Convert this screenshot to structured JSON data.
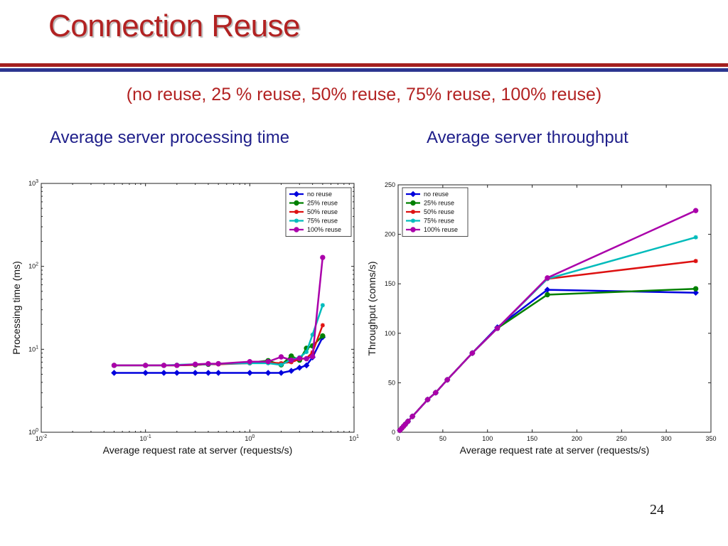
{
  "slide": {
    "title": "Connection Reuse",
    "subtitle": "(no reuse, 25 % reuse, 50% reuse, 75% reuse, 100% reuse)",
    "left_heading": "Average server processing time",
    "right_heading": "Average server throughput",
    "page_number": "24",
    "colors": {
      "title": "#b22222",
      "heading": "#1f1f8a",
      "rule_red": "#a31f1f",
      "rule_blue": "#2c3590"
    }
  },
  "chart_data": [
    {
      "type": "line",
      "title": "",
      "xlabel": "Average request rate at server (requests/s)",
      "ylabel": "Processing time (ms)",
      "xscale": "log",
      "yscale": "log",
      "xlim": [
        0.01,
        10
      ],
      "ylim": [
        1,
        1000
      ],
      "xticks": [
        0.01,
        0.1,
        1,
        10
      ],
      "yticks": [
        1,
        10,
        100,
        1000
      ],
      "xtick_labels": [
        {
          "base": "10",
          "exp": "-2"
        },
        {
          "base": "10",
          "exp": "-1"
        },
        {
          "base": "10",
          "exp": "0"
        },
        {
          "base": "10",
          "exp": "1"
        }
      ],
      "ytick_labels": [
        {
          "base": "10",
          "exp": "0"
        },
        {
          "base": "10",
          "exp": "1"
        },
        {
          "base": "10",
          "exp": "2"
        },
        {
          "base": "10",
          "exp": "3"
        }
      ],
      "grid": false,
      "legend_position": "top-right",
      "series": [
        {
          "name": "no reuse",
          "color": "#0000dd",
          "marker": "diamond",
          "x": [
            0.05,
            0.1,
            0.15,
            0.2,
            0.3,
            0.4,
            0.5,
            1,
            1.5,
            2,
            2.5,
            3,
            3.5,
            4,
            5
          ],
          "y": [
            5.2,
            5.2,
            5.2,
            5.2,
            5.2,
            5.2,
            5.2,
            5.2,
            5.2,
            5.2,
            5.5,
            6.0,
            6.4,
            8.0,
            14.0
          ]
        },
        {
          "name": "25% reuse",
          "color": "#008000",
          "marker": "circle",
          "x": [
            0.05,
            0.1,
            0.15,
            0.2,
            0.3,
            0.4,
            0.5,
            1,
            1.5,
            2,
            2.5,
            3,
            3.5,
            4,
            5
          ],
          "y": [
            6.4,
            6.4,
            6.4,
            6.4,
            6.5,
            6.6,
            6.7,
            6.9,
            7.3,
            6.5,
            8.3,
            7.4,
            10.3,
            11.0,
            14.5
          ]
        },
        {
          "name": "50% reuse",
          "color": "#dd1111",
          "marker": "star",
          "x": [
            0.05,
            0.1,
            0.15,
            0.2,
            0.3,
            0.4,
            0.5,
            1,
            1.5,
            2,
            2.5,
            3,
            3.5,
            4,
            5
          ],
          "y": [
            6.4,
            6.4,
            6.4,
            6.4,
            6.5,
            6.6,
            6.6,
            6.8,
            6.9,
            6.8,
            7.0,
            7.6,
            7.8,
            9.2,
            19.5
          ]
        },
        {
          "name": "75% reuse",
          "color": "#00bbbb",
          "marker": "star",
          "x": [
            0.05,
            0.1,
            0.15,
            0.2,
            0.3,
            0.4,
            0.5,
            1,
            1.5,
            2,
            2.5,
            3,
            3.5,
            4,
            5
          ],
          "y": [
            6.4,
            6.4,
            6.4,
            6.5,
            6.6,
            6.6,
            6.7,
            6.8,
            6.8,
            6.5,
            7.5,
            8.0,
            9.3,
            15.0,
            34.0
          ]
        },
        {
          "name": "100% reuse",
          "color": "#aa00aa",
          "marker": "circle",
          "x": [
            0.05,
            0.1,
            0.15,
            0.2,
            0.3,
            0.4,
            0.5,
            1,
            1.5,
            2,
            2.5,
            3,
            3.5,
            4,
            5
          ],
          "y": [
            6.4,
            6.4,
            6.4,
            6.4,
            6.6,
            6.7,
            6.7,
            7.1,
            7.1,
            8.1,
            7.4,
            7.8,
            7.7,
            8.2,
            128.0
          ]
        }
      ]
    },
    {
      "type": "line",
      "title": "",
      "xlabel": "Average request rate at server (requests/s)",
      "ylabel": "Throughput (conns/s)",
      "xscale": "linear",
      "yscale": "linear",
      "xlim": [
        0,
        350
      ],
      "ylim": [
        0,
        250
      ],
      "xticks": [
        0,
        50,
        100,
        150,
        200,
        250,
        300,
        350
      ],
      "yticks": [
        0,
        50,
        100,
        150,
        200,
        250
      ],
      "grid": false,
      "legend_position": "top-left",
      "series": [
        {
          "name": "no reuse",
          "color": "#0000dd",
          "marker": "diamond",
          "x": [
            2,
            4,
            6,
            8,
            11,
            16,
            33,
            42,
            55,
            83,
            111,
            167,
            333
          ],
          "y": [
            2,
            4,
            6,
            8,
            11,
            16,
            33,
            40,
            53,
            80,
            106,
            144,
            141
          ]
        },
        {
          "name": "25% reuse",
          "color": "#008000",
          "marker": "circle",
          "x": [
            2,
            4,
            6,
            8,
            11,
            16,
            33,
            42,
            55,
            83,
            111,
            167,
            333
          ],
          "y": [
            2,
            4,
            6,
            8,
            11,
            16,
            33,
            40,
            53,
            80,
            105,
            139,
            145
          ]
        },
        {
          "name": "50% reuse",
          "color": "#dd1111",
          "marker": "star",
          "x": [
            2,
            4,
            6,
            8,
            11,
            16,
            33,
            42,
            55,
            83,
            111,
            167,
            333
          ],
          "y": [
            2,
            4,
            6,
            8,
            11,
            16,
            33,
            40,
            53,
            80,
            105,
            155,
            173
          ]
        },
        {
          "name": "75% reuse",
          "color": "#00bbbb",
          "marker": "star",
          "x": [
            2,
            4,
            6,
            8,
            11,
            16,
            33,
            42,
            55,
            83,
            111,
            167,
            333
          ],
          "y": [
            2,
            4,
            6,
            8,
            11,
            16,
            33,
            40,
            53,
            80,
            105,
            155,
            197
          ]
        },
        {
          "name": "100% reuse",
          "color": "#aa00aa",
          "marker": "circle",
          "x": [
            2,
            4,
            6,
            8,
            11,
            16,
            33,
            42,
            55,
            83,
            111,
            167,
            333
          ],
          "y": [
            2,
            4,
            6,
            8,
            11,
            16,
            33,
            40,
            53,
            80,
            105,
            156,
            224
          ]
        }
      ]
    }
  ]
}
